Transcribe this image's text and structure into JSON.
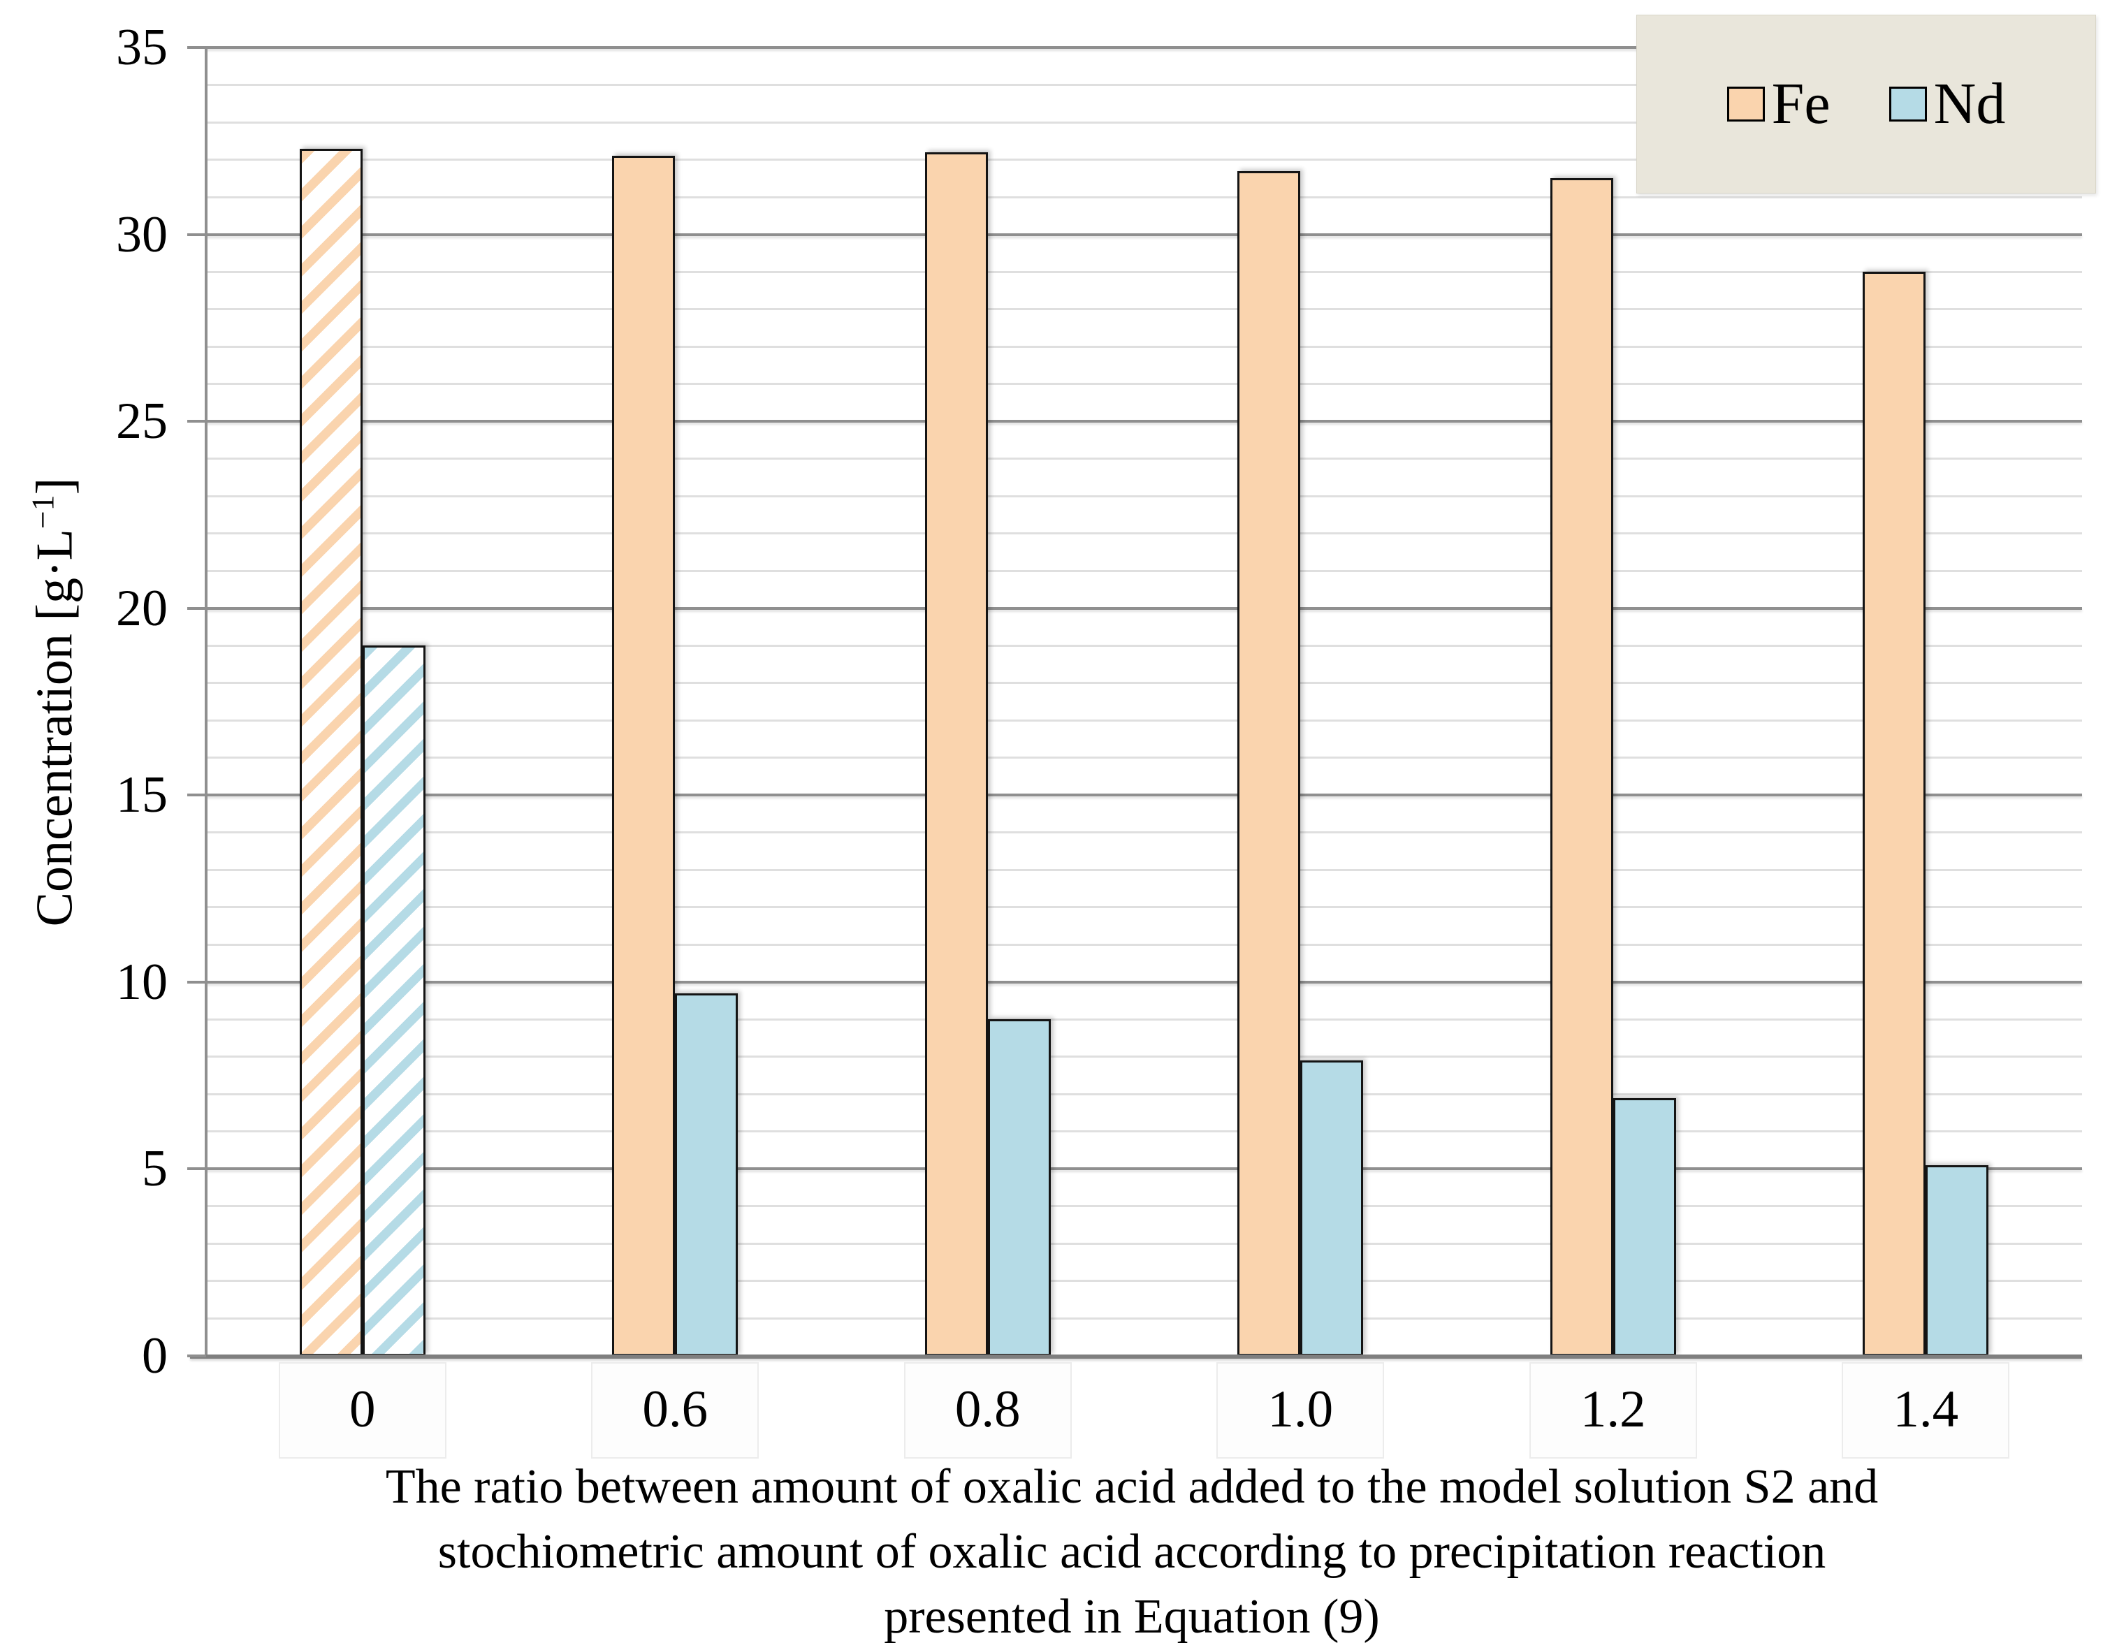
{
  "chart_data": {
    "type": "bar",
    "title": "",
    "categories": [
      "0",
      "0.6",
      "0.8",
      "1.0",
      "1.2",
      "1.4"
    ],
    "series": [
      {
        "name": "Fe",
        "color": "#FAD4AE",
        "values": [
          32.3,
          32.1,
          32.2,
          31.7,
          31.5,
          29.0
        ],
        "hatched_categories": [
          "0"
        ]
      },
      {
        "name": "Nd",
        "color": "#B5DBE6",
        "values": [
          19.0,
          9.7,
          9.0,
          7.9,
          6.9,
          5.1
        ],
        "hatched_categories": [
          "0"
        ]
      }
    ],
    "xlabel": "The ratio between amount of oxalic acid added to the model solution S2 and stochiometric amount of oxalic acid according to precipitation reaction presented in Equation (9)",
    "ylabel": "Concentration [g·L⁻¹]",
    "ylim": [
      0,
      35
    ],
    "yticks": [
      35,
      30,
      25,
      20,
      15,
      10,
      5,
      0
    ],
    "major_grid_step": 5,
    "minor_grid_step": 1,
    "grid": true,
    "legend_position": "top-right"
  },
  "axes": {
    "y": {
      "title_main": "Concentration [g·L",
      "title_sup": "−1",
      "title_close": "]"
    },
    "x": {
      "caption_lines": [
        "The ratio between amount of oxalic acid added to the model solution S2 and",
        "stochiometric amount of oxalic acid according to precipitation reaction",
        "presented in Equation (9)"
      ]
    }
  },
  "legend": {
    "background": "#E9E6DB"
  },
  "colors": {
    "major_gridline": "#8F8F8F",
    "minor_gridline": "#DFDFDF",
    "axis_line": "#7F7F7F",
    "bar_border": "#141414",
    "hatch_background": "#FFFFFF"
  }
}
